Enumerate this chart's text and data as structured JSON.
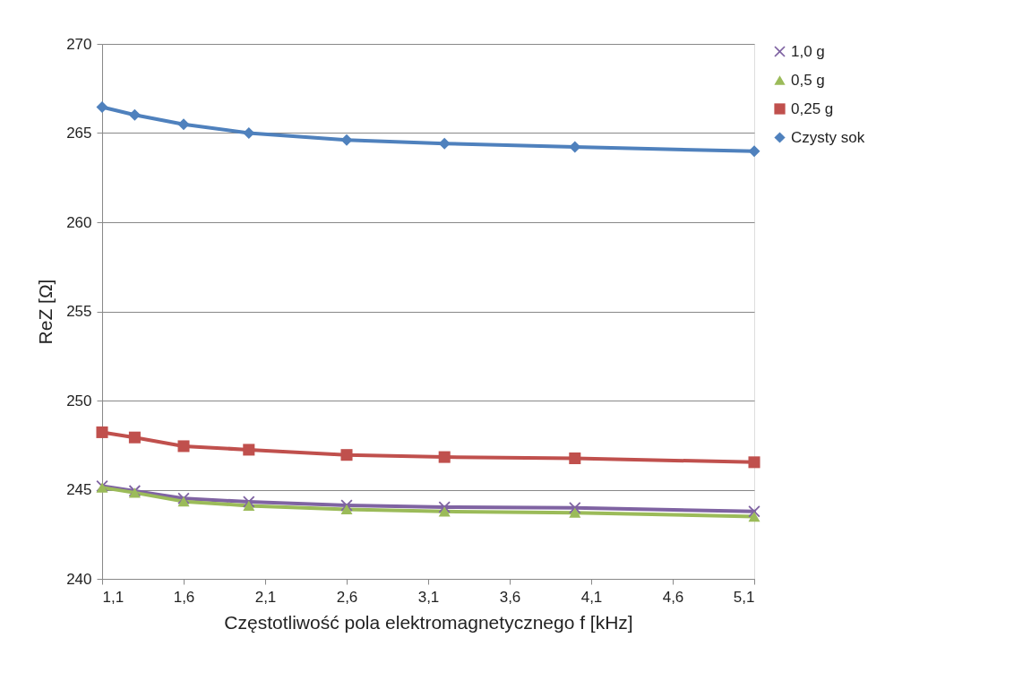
{
  "chart_data": {
    "type": "line",
    "xlabel": "Częstotliwość pola elektromagnetycznego f [kHz]",
    "ylabel": "ReZ [Ω]",
    "x": [
      1.1,
      1.3,
      1.6,
      2.0,
      2.6,
      3.2,
      4.0,
      5.1
    ],
    "series": [
      {
        "name": "1,0 g",
        "color": "#7f63a2",
        "marker": "cross",
        "values": [
          245.2,
          244.93,
          244.51,
          244.32,
          244.12,
          244.02,
          243.98,
          243.78
        ]
      },
      {
        "name": "0,5 g",
        "color": "#9bbb59",
        "marker": "triangle",
        "values": [
          245.12,
          244.83,
          244.34,
          244.1,
          243.9,
          243.78,
          243.71,
          243.49
        ]
      },
      {
        "name": "0,25 g",
        "color": "#c0504d",
        "marker": "square",
        "values": [
          248.22,
          247.93,
          247.44,
          247.24,
          246.95,
          246.83,
          246.76,
          246.54
        ]
      },
      {
        "name": "Czysty sok",
        "color": "#4f81bd",
        "marker": "diamond",
        "values": [
          266.46,
          266.02,
          265.49,
          265.0,
          264.61,
          264.41,
          264.22,
          263.98
        ]
      }
    ],
    "xlim": [
      1.1,
      5.1
    ],
    "xticks": [
      {
        "value": 1.1,
        "label": "1,1"
      },
      {
        "value": 1.6,
        "label": "1,6"
      },
      {
        "value": 2.1,
        "label": "2,1"
      },
      {
        "value": 2.6,
        "label": "2,6"
      },
      {
        "value": 3.1,
        "label": "3,1"
      },
      {
        "value": 3.6,
        "label": "3,6"
      },
      {
        "value": 4.1,
        "label": "4,1"
      },
      {
        "value": 4.6,
        "label": "4,6"
      },
      {
        "value": 5.1,
        "label": "5,1"
      }
    ],
    "ylim": [
      240,
      270
    ],
    "yticks": [
      240,
      245,
      250,
      255,
      260,
      265,
      270
    ],
    "grid": "y",
    "legend": "right",
    "line_style": "solid"
  }
}
